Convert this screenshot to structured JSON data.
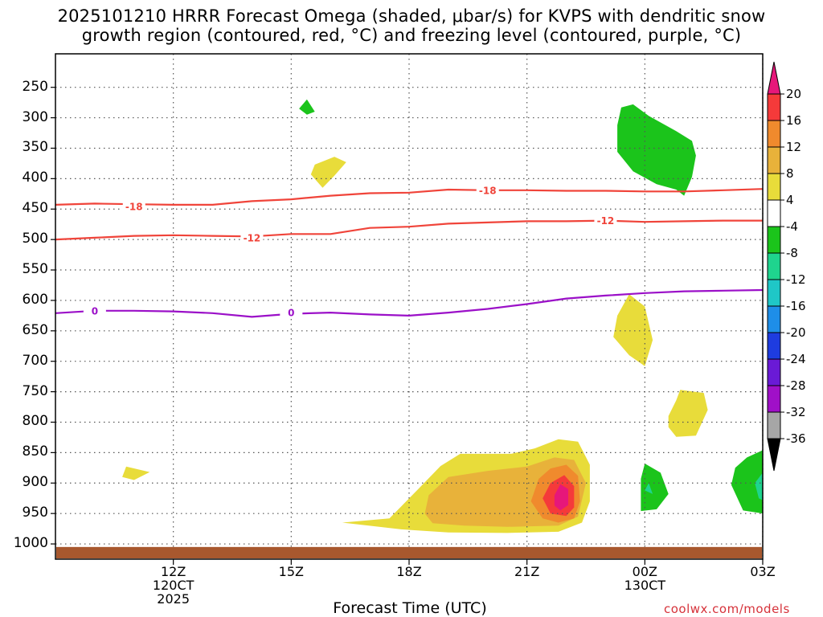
{
  "title_line1": "2025101210 HRRR Forecast Omega (shaded, μbar/s) for KVPS with dendritic snow",
  "title_line2": "growth region (contoured, red, °C) and freezing level (contoured, purple, °C)",
  "xaxis_title": "Forecast Time (UTC)",
  "credit": "coolwx.com/models",
  "chart_data": {
    "type": "time-height cross section (filled contours)",
    "x_unit": "hours after 2025-10-12 12Z",
    "x_range": [
      -3,
      15
    ],
    "x_ticks": [
      {
        "x": 0,
        "lines": [
          "12Z",
          "120CT",
          "2025"
        ]
      },
      {
        "x": 3,
        "lines": [
          "15Z"
        ]
      },
      {
        "x": 6,
        "lines": [
          "18Z"
        ]
      },
      {
        "x": 9,
        "lines": [
          "21Z"
        ]
      },
      {
        "x": 12,
        "lines": [
          "00Z",
          "130CT"
        ]
      },
      {
        "x": 15,
        "lines": [
          "03Z"
        ]
      }
    ],
    "y_unit": "hPa",
    "y_range": [
      1025,
      195
    ],
    "y_ticks": [
      250,
      300,
      350,
      400,
      450,
      500,
      550,
      600,
      650,
      700,
      750,
      800,
      850,
      900,
      950,
      1000
    ],
    "colorbar": {
      "unit": "μbar/s",
      "labels": [
        "20",
        "16",
        "12",
        "8",
        "4",
        "-4",
        "-8",
        "-12",
        "-16",
        "-20",
        "-24",
        "-28",
        "-32",
        "-36"
      ],
      "colors": [
        "#e6177a",
        "#f53a3a",
        "#f08a2d",
        "#e8b23a",
        "#e8dc3a",
        "#ffffff",
        "#1bc41b",
        "#1fd48e",
        "#1fc7c7",
        "#1e8ee8",
        "#1e3ce0",
        "#6a1ad6",
        "#a010c8",
        "#a6a6a6",
        "#000000"
      ]
    },
    "contours": [
      {
        "name": "-18",
        "color": "#f0443a",
        "points": [
          [
            -3,
            443
          ],
          [
            -2,
            441
          ],
          [
            -1,
            442
          ],
          [
            0,
            443
          ],
          [
            1,
            443
          ],
          [
            2,
            437
          ],
          [
            3,
            434
          ],
          [
            4,
            428
          ],
          [
            5,
            424
          ],
          [
            6,
            423
          ],
          [
            7,
            418
          ],
          [
            8,
            419
          ],
          [
            9,
            419
          ],
          [
            10,
            420
          ],
          [
            11,
            420
          ],
          [
            12,
            421
          ],
          [
            13,
            421
          ],
          [
            14,
            419
          ],
          [
            15,
            417
          ],
          [
            15.9,
            413
          ]
        ],
        "labels": [
          [
            -1,
            446
          ],
          [
            8,
            419
          ]
        ]
      },
      {
        "name": "-12",
        "color": "#f0443a",
        "points": [
          [
            -3,
            500
          ],
          [
            -2,
            497
          ],
          [
            -1,
            494
          ],
          [
            0,
            493
          ],
          [
            1,
            494
          ],
          [
            2,
            495
          ],
          [
            3,
            491
          ],
          [
            4,
            491
          ],
          [
            5,
            481
          ],
          [
            6,
            479
          ],
          [
            7,
            474
          ],
          [
            8,
            472
          ],
          [
            9,
            470
          ],
          [
            10,
            470
          ],
          [
            11,
            469
          ],
          [
            12,
            471
          ],
          [
            13,
            470
          ],
          [
            14,
            469
          ],
          [
            15,
            469
          ],
          [
            15.9,
            468
          ]
        ],
        "labels": [
          [
            2,
            497
          ],
          [
            11,
            469
          ]
        ]
      },
      {
        "name": "0",
        "color": "#9b10c8",
        "points": [
          [
            -3,
            621
          ],
          [
            -2,
            617
          ],
          [
            -1,
            617
          ],
          [
            0,
            618
          ],
          [
            1,
            621
          ],
          [
            2,
            627
          ],
          [
            3,
            622
          ],
          [
            4,
            620
          ],
          [
            5,
            623
          ],
          [
            6,
            625
          ],
          [
            7,
            620
          ],
          [
            8,
            614
          ],
          [
            9,
            606
          ],
          [
            10,
            597
          ],
          [
            11,
            592
          ],
          [
            12,
            588
          ],
          [
            13,
            585
          ],
          [
            14,
            584
          ],
          [
            15,
            583
          ],
          [
            15.9,
            581
          ]
        ],
        "labels": [
          [
            -2,
            617
          ],
          [
            3,
            620
          ]
        ]
      }
    ],
    "omega_regions": [
      {
        "value_class": "4 to 8",
        "color": "#e8dc3a",
        "points": [
          [
            3.6,
            377
          ],
          [
            4.1,
            364
          ],
          [
            4.4,
            373
          ],
          [
            4.1,
            395
          ],
          [
            3.8,
            415
          ],
          [
            3.5,
            393
          ]
        ]
      },
      {
        "value_class": "4 to 8",
        "color": "#e8dc3a",
        "points": [
          [
            12.8,
            764
          ],
          [
            12.9,
            747
          ],
          [
            13.5,
            752
          ],
          [
            13.6,
            780
          ],
          [
            13.3,
            822
          ],
          [
            12.8,
            824
          ],
          [
            12.6,
            808
          ],
          [
            12.6,
            790
          ]
        ]
      },
      {
        "value_class": "4 to 8",
        "color": "#e8dc3a",
        "points": [
          [
            11.3,
            625
          ],
          [
            11.6,
            590
          ],
          [
            12.0,
            610
          ],
          [
            12.2,
            665
          ],
          [
            12.0,
            708
          ],
          [
            11.6,
            690
          ],
          [
            11.2,
            660
          ]
        ]
      },
      {
        "value_class": "4 to 8",
        "color": "#e8dc3a",
        "points": [
          [
            15.0,
            383
          ],
          [
            15.9,
            383
          ],
          [
            15.9,
            545
          ],
          [
            15.7,
            505
          ],
          [
            15.3,
            450
          ],
          [
            15.0,
            410
          ]
        ]
      },
      {
        "value_class": "4 to 8",
        "color": "#e8dc3a",
        "points": [
          [
            -1.2,
            873
          ],
          [
            -0.6,
            882
          ],
          [
            -1.0,
            895
          ],
          [
            -1.3,
            890
          ]
        ]
      },
      {
        "value_class": "4 to 8",
        "color": "#e8dc3a",
        "points": [
          [
            4.3,
            965
          ],
          [
            5.5,
            958
          ],
          [
            6.2,
            912
          ],
          [
            6.8,
            872
          ],
          [
            7.3,
            852
          ],
          [
            8.6,
            852
          ],
          [
            9.2,
            843
          ],
          [
            9.8,
            828
          ],
          [
            10.3,
            832
          ],
          [
            10.6,
            870
          ],
          [
            10.6,
            930
          ],
          [
            10.4,
            965
          ],
          [
            9.8,
            980
          ],
          [
            8.5,
            982
          ],
          [
            7.0,
            981
          ],
          [
            5.8,
            976
          ]
        ]
      },
      {
        "value_class": "8 to 12",
        "color": "#e8b23a",
        "points": [
          [
            6.4,
            950
          ],
          [
            6.5,
            920
          ],
          [
            7.0,
            890
          ],
          [
            8.0,
            880
          ],
          [
            9.0,
            873
          ],
          [
            9.7,
            858
          ],
          [
            10.2,
            862
          ],
          [
            10.5,
            900
          ],
          [
            10.3,
            955
          ],
          [
            9.8,
            970
          ],
          [
            8.5,
            972
          ],
          [
            7.4,
            970
          ],
          [
            6.6,
            966
          ]
        ]
      },
      {
        "value_class": "12 to 16",
        "color": "#f08a2d",
        "points": [
          [
            9.1,
            930
          ],
          [
            9.3,
            893
          ],
          [
            9.6,
            876
          ],
          [
            10.0,
            870
          ],
          [
            10.3,
            888
          ],
          [
            10.35,
            930
          ],
          [
            10.2,
            958
          ],
          [
            9.8,
            965
          ],
          [
            9.4,
            958
          ]
        ]
      },
      {
        "value_class": "16 to 20",
        "color": "#f53a3a",
        "points": [
          [
            9.4,
            925
          ],
          [
            9.6,
            900
          ],
          [
            9.95,
            887
          ],
          [
            10.2,
            905
          ],
          [
            10.2,
            940
          ],
          [
            10.0,
            954
          ],
          [
            9.6,
            950
          ]
        ]
      },
      {
        "value_class": "> 20",
        "color": "#e6177a",
        "points": [
          [
            9.7,
            920
          ],
          [
            9.85,
            902
          ],
          [
            10.05,
            910
          ],
          [
            10.05,
            936
          ],
          [
            9.85,
            945
          ],
          [
            9.7,
            937
          ]
        ]
      },
      {
        "value_class": "-4 to -8",
        "color": "#1bc41b",
        "points": [
          [
            3.2,
            285
          ],
          [
            3.4,
            270
          ],
          [
            3.6,
            290
          ],
          [
            3.4,
            295
          ]
        ]
      },
      {
        "value_class": "-4 to -8",
        "color": "#1bc41b",
        "points": [
          [
            11.4,
            283
          ],
          [
            11.7,
            278
          ],
          [
            12.1,
            297
          ],
          [
            12.8,
            322
          ],
          [
            13.2,
            338
          ],
          [
            13.3,
            362
          ],
          [
            13.2,
            397
          ],
          [
            13.0,
            428
          ],
          [
            12.8,
            418
          ],
          [
            12.3,
            409
          ],
          [
            11.7,
            388
          ],
          [
            11.3,
            356
          ],
          [
            11.3,
            312
          ]
        ]
      },
      {
        "value_class": "-4 to -8",
        "color": "#1bc41b",
        "points": [
          [
            11.9,
            893
          ],
          [
            12.0,
            868
          ],
          [
            12.4,
            883
          ],
          [
            12.6,
            918
          ],
          [
            12.3,
            943
          ],
          [
            11.9,
            946
          ]
        ]
      },
      {
        "value_class": "-4 to -8",
        "color": "#1bc41b",
        "points": [
          [
            14.3,
            875
          ],
          [
            14.6,
            858
          ],
          [
            15.1,
            843
          ],
          [
            15.7,
            848
          ],
          [
            15.9,
            856
          ],
          [
            15.9,
            940
          ],
          [
            15.2,
            952
          ],
          [
            14.5,
            945
          ],
          [
            14.2,
            903
          ]
        ]
      },
      {
        "value_class": "-8 to -12",
        "color": "#1fd48e",
        "points": [
          [
            14.8,
            900
          ],
          [
            15.0,
            883
          ],
          [
            15.5,
            880
          ],
          [
            15.9,
            887
          ],
          [
            15.9,
            925
          ],
          [
            15.3,
            938
          ],
          [
            14.9,
            925
          ]
        ]
      },
      {
        "value_class": "-8 to -12",
        "color": "#1fd48e",
        "points": [
          [
            12.0,
            912
          ],
          [
            12.1,
            900
          ],
          [
            12.2,
            918
          ]
        ]
      }
    ],
    "terrain": {
      "color": "#a8582e",
      "surface_pressure_hPa": 1005
    }
  }
}
